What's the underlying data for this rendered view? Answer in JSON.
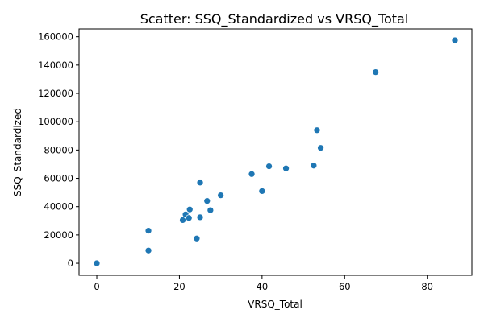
{
  "chart_data": {
    "type": "scatter",
    "title": "Scatter: SSQ_Standardized vs VRSQ_Total",
    "xlabel": "VRSQ_Total",
    "ylabel": "SSQ_Standardized",
    "xlim": [
      -4.3,
      90.8
    ],
    "ylim": [
      -8500,
      165500
    ],
    "xticks": [
      0,
      20,
      40,
      60,
      80
    ],
    "yticks": [
      0,
      20000,
      40000,
      60000,
      80000,
      100000,
      120000,
      140000,
      160000
    ],
    "xtick_labels": [
      "0",
      "20",
      "40",
      "60",
      "80"
    ],
    "ytick_labels": [
      "0",
      "20000",
      "40000",
      "60000",
      "80000",
      "100000",
      "120000",
      "140000",
      "160000"
    ],
    "grid": false,
    "marker_color": "#1f77b4",
    "points": [
      {
        "x": 0,
        "y": 0
      },
      {
        "x": 12.5,
        "y": 9000
      },
      {
        "x": 12.5,
        "y": 23000
      },
      {
        "x": 20.8,
        "y": 30500
      },
      {
        "x": 21.5,
        "y": 34500
      },
      {
        "x": 22.3,
        "y": 32000
      },
      {
        "x": 22.5,
        "y": 38000
      },
      {
        "x": 24.2,
        "y": 17500
      },
      {
        "x": 25.0,
        "y": 32500
      },
      {
        "x": 25.0,
        "y": 57000
      },
      {
        "x": 26.7,
        "y": 44000
      },
      {
        "x": 27.5,
        "y": 37500
      },
      {
        "x": 30.0,
        "y": 48000
      },
      {
        "x": 37.5,
        "y": 63000
      },
      {
        "x": 40.0,
        "y": 51000
      },
      {
        "x": 41.7,
        "y": 68500
      },
      {
        "x": 45.8,
        "y": 67000
      },
      {
        "x": 52.5,
        "y": 69000
      },
      {
        "x": 53.3,
        "y": 94000
      },
      {
        "x": 54.2,
        "y": 81500
      },
      {
        "x": 67.5,
        "y": 135000
      },
      {
        "x": 86.7,
        "y": 157500
      }
    ]
  }
}
